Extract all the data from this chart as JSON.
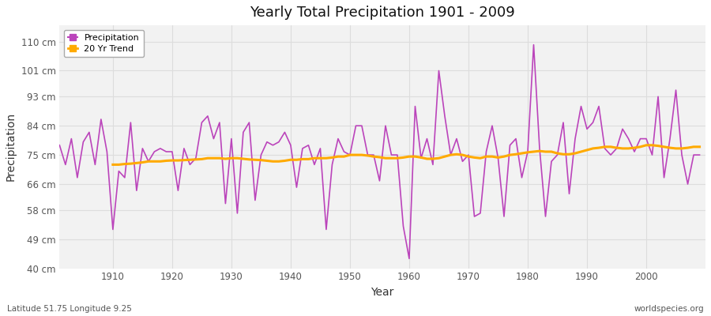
{
  "title": "Yearly Total Precipitation 1901 - 2009",
  "xlabel": "Year",
  "ylabel": "Precipitation",
  "subtitle_left": "Latitude 51.75 Longitude 9.25",
  "subtitle_right": "worldspecies.org",
  "line_color": "#bb44bb",
  "trend_color": "#ffaa00",
  "bg_color": "#ffffff",
  "plot_bg_color": "#f2f2f2",
  "grid_color": "#dddddd",
  "ylim": [
    40,
    115
  ],
  "yticks": [
    40,
    49,
    58,
    66,
    75,
    84,
    93,
    101,
    110
  ],
  "ytick_labels": [
    "40 cm",
    "49 cm",
    "58 cm",
    "66 cm",
    "75 cm",
    "84 cm",
    "93 cm",
    "101 cm",
    "110 cm"
  ],
  "years": [
    1901,
    1902,
    1903,
    1904,
    1905,
    1906,
    1907,
    1908,
    1909,
    1910,
    1911,
    1912,
    1913,
    1914,
    1915,
    1916,
    1917,
    1918,
    1919,
    1920,
    1921,
    1922,
    1923,
    1924,
    1925,
    1926,
    1927,
    1928,
    1929,
    1930,
    1931,
    1932,
    1933,
    1934,
    1935,
    1936,
    1937,
    1938,
    1939,
    1940,
    1941,
    1942,
    1943,
    1944,
    1945,
    1946,
    1947,
    1948,
    1949,
    1950,
    1951,
    1952,
    1953,
    1954,
    1955,
    1956,
    1957,
    1958,
    1959,
    1960,
    1961,
    1962,
    1963,
    1964,
    1965,
    1966,
    1967,
    1968,
    1969,
    1970,
    1971,
    1972,
    1973,
    1974,
    1975,
    1976,
    1977,
    1978,
    1979,
    1980,
    1981,
    1982,
    1983,
    1984,
    1985,
    1986,
    1987,
    1988,
    1989,
    1990,
    1991,
    1992,
    1993,
    1994,
    1995,
    1996,
    1997,
    1998,
    1999,
    2000,
    2001,
    2002,
    2003,
    2004,
    2005,
    2006,
    2007,
    2008,
    2009
  ],
  "precip": [
    78,
    72,
    80,
    68,
    79,
    82,
    72,
    86,
    76,
    52,
    70,
    68,
    85,
    64,
    77,
    73,
    76,
    77,
    76,
    76,
    64,
    77,
    72,
    74,
    85,
    87,
    80,
    85,
    60,
    80,
    57,
    82,
    85,
    61,
    75,
    79,
    78,
    79,
    82,
    78,
    65,
    77,
    78,
    72,
    77,
    52,
    72,
    80,
    76,
    75,
    84,
    84,
    75,
    75,
    67,
    84,
    75,
    75,
    53,
    43,
    90,
    74,
    80,
    72,
    101,
    87,
    75,
    80,
    73,
    75,
    56,
    57,
    76,
    84,
    74,
    56,
    78,
    80,
    68,
    76,
    109,
    77,
    56,
    73,
    75,
    85,
    63,
    80,
    90,
    83,
    85,
    90,
    77,
    75,
    77,
    83,
    80,
    76,
    80,
    80,
    75,
    93,
    68,
    80,
    95,
    75,
    66,
    75,
    75
  ],
  "trend_start_year": 1910,
  "trend": [
    72.0,
    72.0,
    72.2,
    72.3,
    72.5,
    72.7,
    73.0,
    73.0,
    73.0,
    73.2,
    73.3,
    73.3,
    73.4,
    73.5,
    73.6,
    73.7,
    74.0,
    74.0,
    74.0,
    73.8,
    74.0,
    74.0,
    73.8,
    73.6,
    73.5,
    73.4,
    73.2,
    73.0,
    73.0,
    73.2,
    73.5,
    73.5,
    73.7,
    73.7,
    74.0,
    74.0,
    74.0,
    74.2,
    74.5,
    74.5,
    75.0,
    75.0,
    75.0,
    74.8,
    74.5,
    74.3,
    74.0,
    74.0,
    74.0,
    74.2,
    74.5,
    74.5,
    74.2,
    73.8,
    73.8,
    74.0,
    74.5,
    75.0,
    75.2,
    75.0,
    74.5,
    74.2,
    74.0,
    74.5,
    74.5,
    74.2,
    74.5,
    75.0,
    75.2,
    75.5,
    75.8,
    76.0,
    76.2,
    76.0,
    76.0,
    75.5,
    75.2,
    75.2,
    75.5,
    76.0,
    76.5,
    77.0,
    77.2,
    77.5,
    77.5,
    77.2,
    77.0,
    77.0,
    77.2,
    77.5,
    78.0,
    78.0,
    77.8,
    77.5,
    77.2,
    77.0,
    77.0,
    77.2,
    77.5,
    77.5
  ],
  "xticks": [
    1910,
    1920,
    1930,
    1940,
    1950,
    1960,
    1970,
    1980,
    1990,
    2000
  ],
  "xlim": [
    1901,
    2010
  ]
}
